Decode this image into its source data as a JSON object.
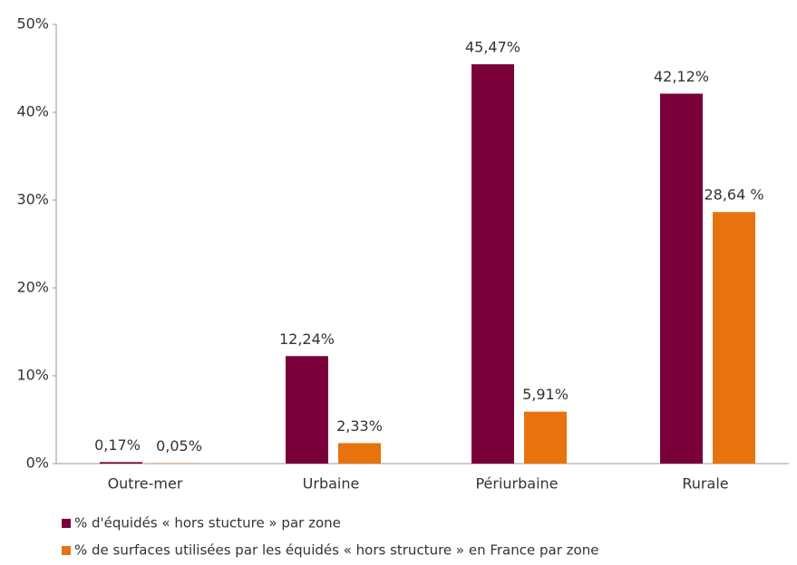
{
  "chart_data": {
    "type": "bar",
    "categories": [
      "Outre-mer",
      "Urbaine",
      "Périurbaine",
      "Rurale"
    ],
    "series": [
      {
        "name": "% d'équidés « hors stucture » par zone",
        "color": "#7a0039",
        "values": [
          0.17,
          12.24,
          45.47,
          42.12
        ],
        "value_labels": [
          "0,17%",
          "12,24%",
          "45,47%",
          "42,12%"
        ]
      },
      {
        "name": "% de surfaces utilisées par les équidés « hors structure » en France par zone",
        "color": "#e8730e",
        "values": [
          0.05,
          2.33,
          5.91,
          28.64
        ],
        "value_labels": [
          "0,05%",
          "2,33%",
          "5,91%",
          "28,64 %"
        ]
      }
    ],
    "ylim": [
      0,
      50
    ],
    "yticks": [
      {
        "value": 0,
        "label": "0%"
      },
      {
        "value": 10,
        "label": "10%"
      },
      {
        "value": 20,
        "label": "20%"
      },
      {
        "value": 30,
        "label": "30%"
      },
      {
        "value": 40,
        "label": "40%"
      },
      {
        "value": 50,
        "label": "50%"
      }
    ],
    "legend": "bottom"
  }
}
